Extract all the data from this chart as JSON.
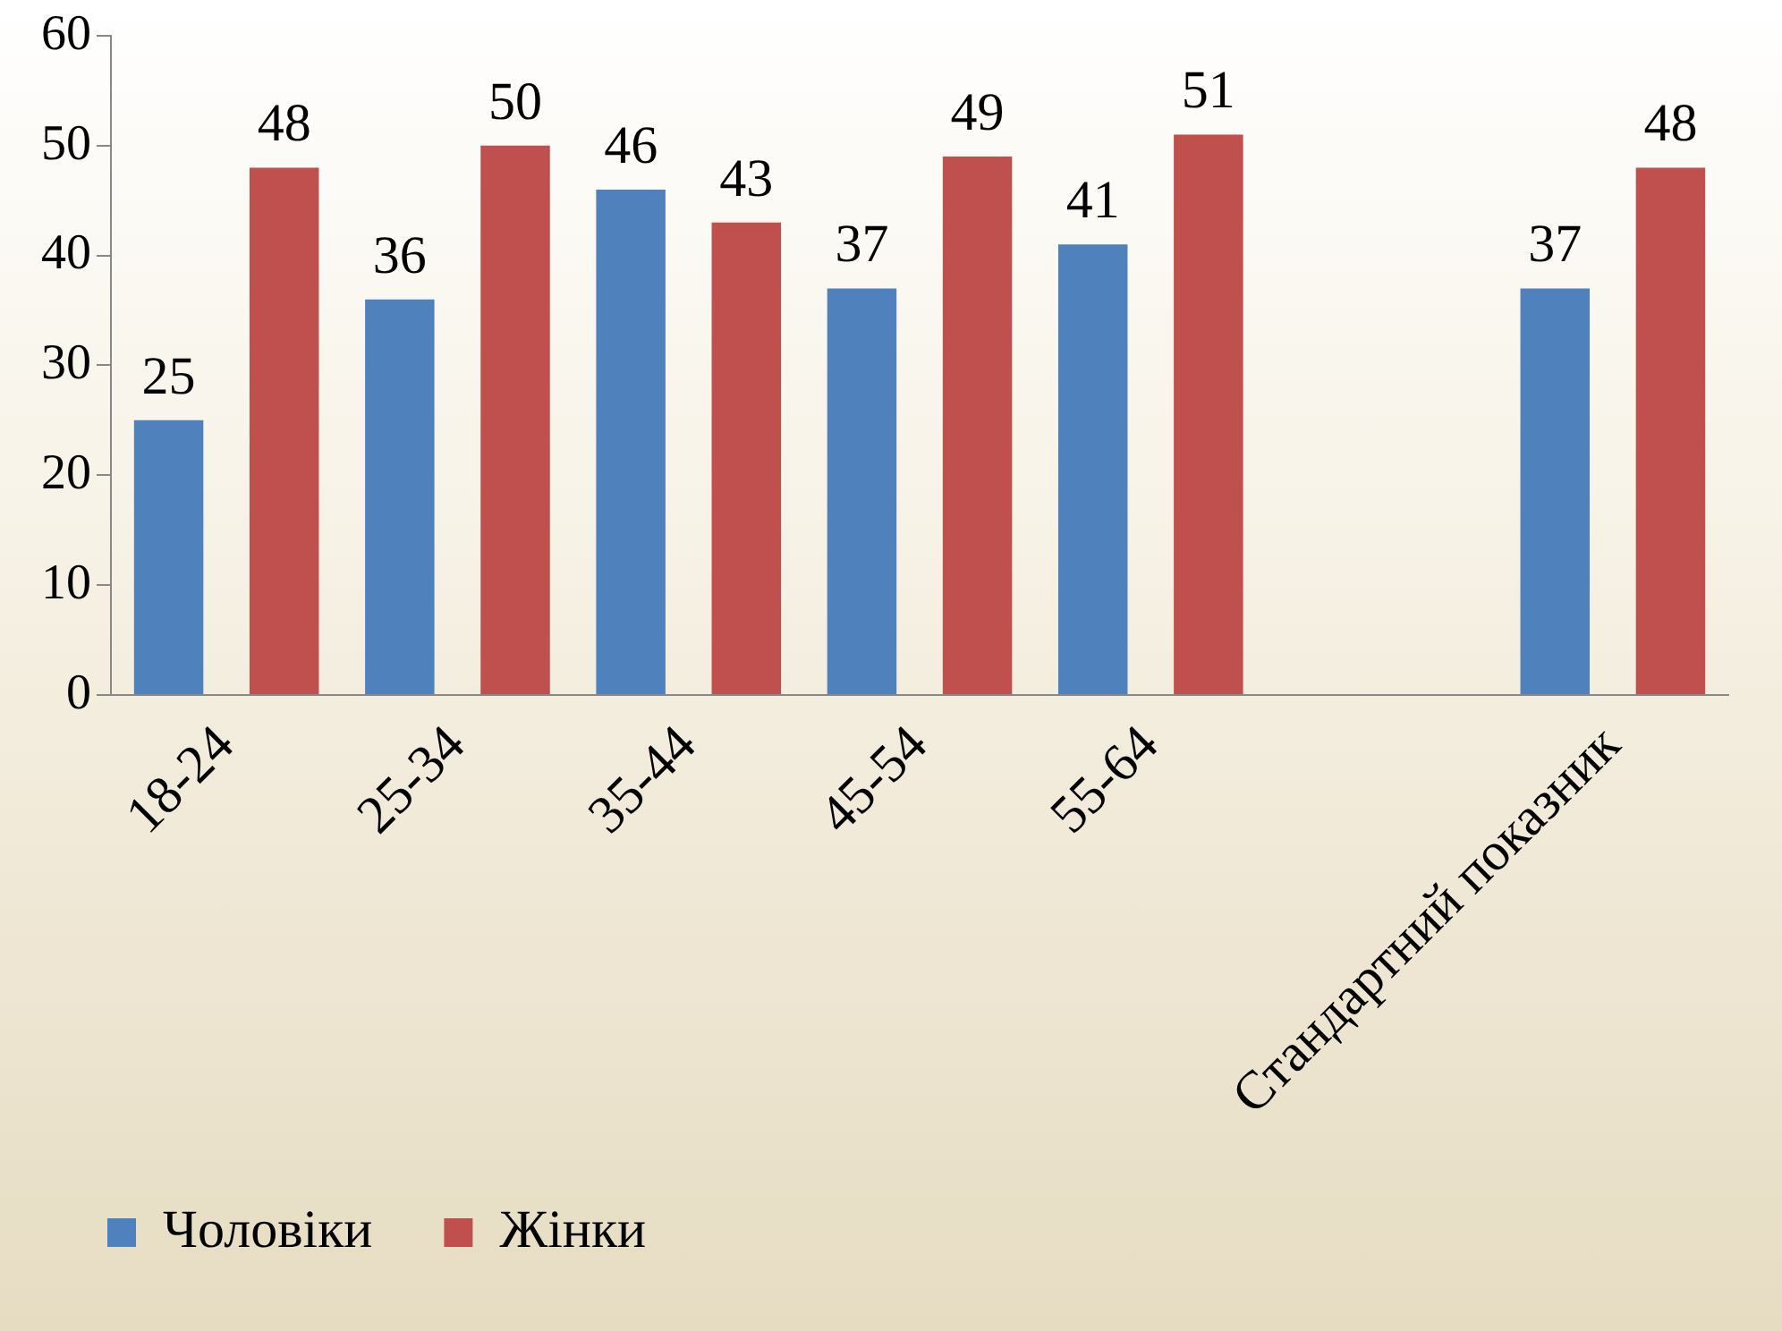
{
  "chart_data": {
    "type": "bar",
    "categories": [
      "18-24",
      "25-34",
      "35-44",
      "45-54",
      "55-64",
      null,
      "Стандартний показник"
    ],
    "series": [
      {
        "name": "Чоловіки",
        "color": "#4f81bd",
        "values": [
          25,
          36,
          46,
          37,
          41,
          null,
          37
        ]
      },
      {
        "name": "Жінки",
        "color": "#c0504d",
        "values": [
          48,
          50,
          43,
          49,
          51,
          null,
          48
        ]
      }
    ],
    "ylim": [
      0,
      60
    ],
    "yticks": [
      0,
      10,
      20,
      30,
      40,
      50,
      60
    ],
    "data_labels": true,
    "legend": "bottom left",
    "grid": false
  }
}
